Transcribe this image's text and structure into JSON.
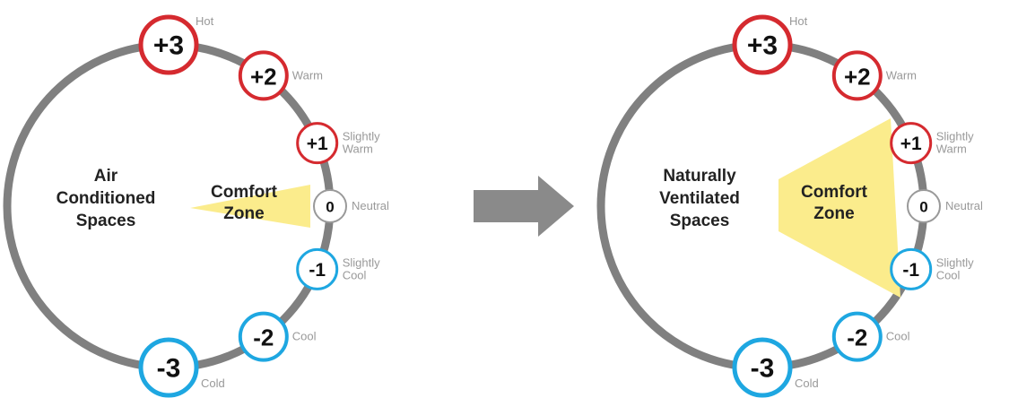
{
  "panels": [
    {
      "title": [
        "Air",
        "Conditioned",
        "Spaces"
      ],
      "comfort_zone": [
        "Comfort",
        "Zone"
      ],
      "scale": [
        {
          "value": "+3",
          "label": [
            "Hot"
          ]
        },
        {
          "value": "+2",
          "label": [
            "Warm"
          ]
        },
        {
          "value": "+1",
          "label": [
            "Slightly",
            "Warm"
          ]
        },
        {
          "value": "0",
          "label": [
            "Neutral"
          ]
        },
        {
          "value": "-1",
          "label": [
            "Slightly",
            "Cool"
          ]
        },
        {
          "value": "-2",
          "label": [
            "Cool"
          ]
        },
        {
          "value": "-3",
          "label": [
            "Cold"
          ]
        }
      ]
    },
    {
      "title": [
        "Naturally",
        "Ventilated",
        "Spaces"
      ],
      "comfort_zone": [
        "Comfort",
        "Zone"
      ],
      "scale": [
        {
          "value": "+3",
          "label": [
            "Hot"
          ]
        },
        {
          "value": "+2",
          "label": [
            "Warm"
          ]
        },
        {
          "value": "+1",
          "label": [
            "Slightly",
            "Warm"
          ]
        },
        {
          "value": "0",
          "label": [
            "Neutral"
          ]
        },
        {
          "value": "-1",
          "label": [
            "Slightly",
            "Cool"
          ]
        },
        {
          "value": "-2",
          "label": [
            "Cool"
          ]
        },
        {
          "value": "-3",
          "label": [
            "Cold"
          ]
        }
      ]
    }
  ]
}
